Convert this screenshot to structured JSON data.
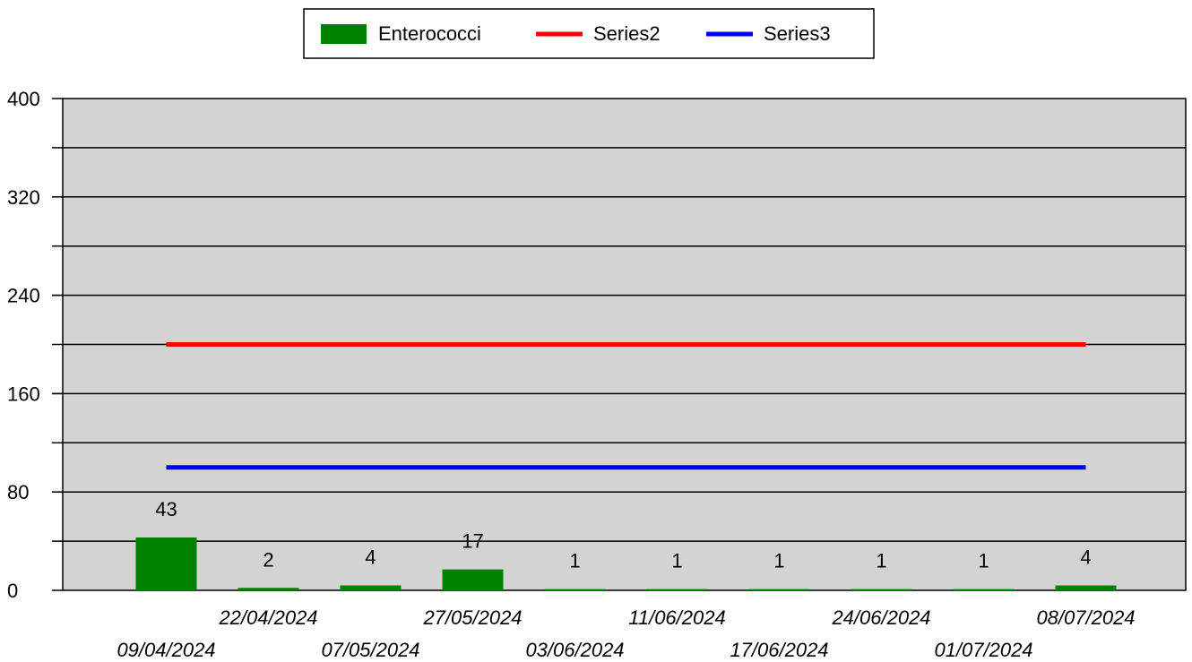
{
  "chart_data": {
    "type": "bar",
    "title": "",
    "xlabel": "",
    "ylabel": "",
    "ylim": [
      0,
      400
    ],
    "yticks": [
      0,
      80,
      160,
      240,
      320,
      400
    ],
    "grid": true,
    "legend_position": "top-center",
    "categories": [
      "09/04/2024",
      "22/04/2024",
      "07/05/2024",
      "27/05/2024",
      "03/06/2024",
      "11/06/2024",
      "17/06/2024",
      "24/06/2024",
      "01/07/2024",
      "08/07/2024"
    ],
    "series": [
      {
        "name": "Enterococci",
        "kind": "bar",
        "color": "#008000",
        "values": [
          43,
          2,
          4,
          17,
          1,
          1,
          1,
          1,
          1,
          4
        ],
        "labels": [
          "43",
          "2",
          "4",
          "17",
          "1",
          "1",
          "1",
          "1",
          "1",
          "4"
        ]
      },
      {
        "name": "Series2",
        "kind": "line",
        "color": "#ff0000",
        "values": [
          200,
          200,
          200,
          200,
          200,
          200,
          200,
          200,
          200,
          200
        ]
      },
      {
        "name": "Series3",
        "kind": "line",
        "color": "#0000ff",
        "values": [
          100,
          100,
          100,
          100,
          100,
          100,
          100,
          100,
          100,
          100
        ]
      }
    ],
    "plot_background": "#d3d3d3"
  }
}
